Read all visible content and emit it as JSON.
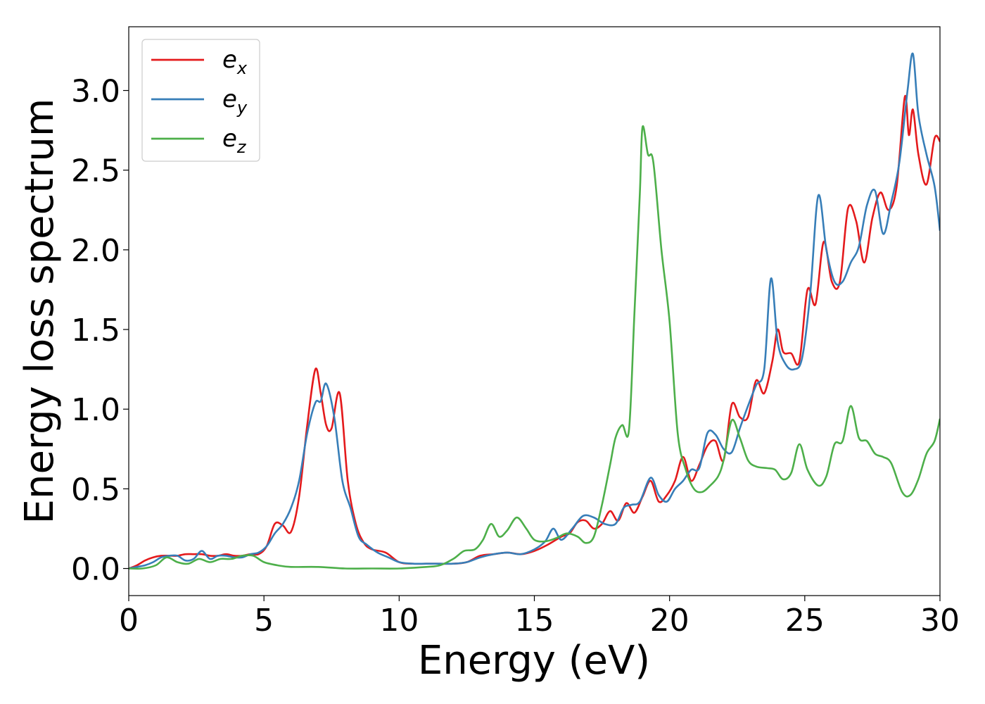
{
  "chart_data": {
    "type": "line",
    "xlabel": "Energy (eV)",
    "ylabel": "Energy loss spectrum",
    "xlim": [
      0,
      30
    ],
    "ylim": [
      -0.17,
      3.4
    ],
    "xticks": [
      0,
      5,
      10,
      15,
      20,
      25,
      30
    ],
    "xtick_labels": [
      "0",
      "5",
      "10",
      "15",
      "20",
      "25",
      "30"
    ],
    "yticks": [
      0.0,
      0.5,
      1.0,
      1.5,
      2.0,
      2.5,
      3.0
    ],
    "ytick_labels": [
      "0.0",
      "0.5",
      "1.0",
      "1.5",
      "2.0",
      "2.5",
      "3.0"
    ],
    "grid": false,
    "legend_position": "top-left",
    "series": [
      {
        "name": "e",
        "subscript": "x",
        "color": "#e41a1c",
        "x": [
          0,
          0.3,
          0.6,
          0.9,
          1.2,
          1.5,
          1.8,
          2.1,
          2.4,
          2.7,
          3.0,
          3.3,
          3.6,
          3.9,
          4.2,
          4.5,
          4.8,
          5.1,
          5.4,
          5.7,
          6.0,
          6.3,
          6.6,
          6.9,
          7.1,
          7.3,
          7.5,
          7.8,
          8.1,
          8.4,
          8.7,
          9.0,
          9.5,
          10.0,
          10.5,
          11.0,
          11.5,
          12.0,
          12.5,
          13.0,
          13.5,
          14.0,
          14.5,
          15.0,
          15.5,
          16.0,
          16.3,
          16.6,
          16.9,
          17.2,
          17.5,
          17.8,
          18.1,
          18.4,
          18.7,
          19.0,
          19.3,
          19.6,
          19.9,
          20.2,
          20.5,
          20.8,
          21.1,
          21.4,
          21.7,
          22.0,
          22.3,
          22.6,
          22.9,
          23.2,
          23.5,
          23.8,
          24.0,
          24.2,
          24.5,
          24.8,
          25.1,
          25.4,
          25.7,
          26.0,
          26.3,
          26.6,
          26.9,
          27.2,
          27.5,
          27.8,
          28.1,
          28.4,
          28.7,
          28.85,
          29.0,
          29.2,
          29.5,
          29.8,
          30.0
        ],
        "y": [
          0.0,
          0.02,
          0.05,
          0.07,
          0.08,
          0.08,
          0.08,
          0.09,
          0.09,
          0.09,
          0.08,
          0.08,
          0.09,
          0.08,
          0.08,
          0.09,
          0.09,
          0.14,
          0.28,
          0.27,
          0.23,
          0.45,
          0.9,
          1.25,
          1.1,
          0.9,
          0.88,
          1.1,
          0.55,
          0.28,
          0.16,
          0.12,
          0.1,
          0.04,
          0.03,
          0.03,
          0.03,
          0.03,
          0.04,
          0.08,
          0.09,
          0.1,
          0.09,
          0.11,
          0.15,
          0.2,
          0.22,
          0.29,
          0.3,
          0.25,
          0.28,
          0.36,
          0.3,
          0.41,
          0.35,
          0.45,
          0.55,
          0.42,
          0.46,
          0.55,
          0.7,
          0.55,
          0.65,
          0.77,
          0.8,
          0.68,
          1.03,
          0.95,
          0.95,
          1.18,
          1.1,
          1.3,
          1.5,
          1.36,
          1.35,
          1.3,
          1.75,
          1.66,
          2.05,
          1.8,
          1.8,
          2.26,
          2.18,
          1.92,
          2.2,
          2.36,
          2.25,
          2.4,
          2.96,
          2.72,
          2.88,
          2.6,
          2.41,
          2.7,
          2.68
        ]
      },
      {
        "name": "e",
        "subscript": "y",
        "color": "#377eb8",
        "x": [
          0,
          0.3,
          0.6,
          0.9,
          1.2,
          1.5,
          1.8,
          2.1,
          2.4,
          2.7,
          3.0,
          3.3,
          3.6,
          3.9,
          4.2,
          4.5,
          4.8,
          5.1,
          5.4,
          5.7,
          6.0,
          6.3,
          6.6,
          6.9,
          7.1,
          7.3,
          7.6,
          7.9,
          8.2,
          8.5,
          8.8,
          9.2,
          9.6,
          10.0,
          10.5,
          11.0,
          11.5,
          12.0,
          12.5,
          13.0,
          13.5,
          14.0,
          14.5,
          15.0,
          15.4,
          15.7,
          16.0,
          16.4,
          16.8,
          17.2,
          17.6,
          18.0,
          18.3,
          18.6,
          18.9,
          19.3,
          19.6,
          19.9,
          20.2,
          20.5,
          20.8,
          21.1,
          21.4,
          21.7,
          22.0,
          22.3,
          22.6,
          22.9,
          23.2,
          23.5,
          23.75,
          24.0,
          24.3,
          24.6,
          24.9,
          25.2,
          25.5,
          25.8,
          26.1,
          26.4,
          26.7,
          27.0,
          27.3,
          27.6,
          27.9,
          28.2,
          28.5,
          28.8,
          29.0,
          29.2,
          29.5,
          29.8,
          30.0
        ],
        "y": [
          0.0,
          0.01,
          0.02,
          0.04,
          0.07,
          0.08,
          0.08,
          0.05,
          0.06,
          0.11,
          0.06,
          0.08,
          0.08,
          0.07,
          0.07,
          0.09,
          0.1,
          0.14,
          0.22,
          0.28,
          0.38,
          0.55,
          0.85,
          1.04,
          1.05,
          1.16,
          0.95,
          0.55,
          0.38,
          0.2,
          0.15,
          0.1,
          0.07,
          0.04,
          0.03,
          0.03,
          0.03,
          0.03,
          0.04,
          0.07,
          0.09,
          0.1,
          0.09,
          0.12,
          0.17,
          0.25,
          0.18,
          0.25,
          0.33,
          0.32,
          0.28,
          0.28,
          0.38,
          0.4,
          0.42,
          0.57,
          0.46,
          0.42,
          0.5,
          0.55,
          0.62,
          0.63,
          0.85,
          0.84,
          0.75,
          0.73,
          0.88,
          1.02,
          1.15,
          1.25,
          1.82,
          1.42,
          1.28,
          1.25,
          1.32,
          1.72,
          2.34,
          2.0,
          1.8,
          1.8,
          1.92,
          2.02,
          2.28,
          2.37,
          2.1,
          2.3,
          2.55,
          3.0,
          3.23,
          2.85,
          2.6,
          2.4,
          2.12
        ]
      },
      {
        "name": "e",
        "subscript": "z",
        "color": "#4daf4a",
        "x": [
          0,
          0.5,
          1.0,
          1.4,
          1.8,
          2.2,
          2.6,
          3.0,
          3.4,
          3.8,
          4.2,
          4.6,
          5.0,
          5.5,
          6.0,
          7.0,
          8.0,
          9.0,
          10.0,
          11.0,
          11.5,
          12.0,
          12.4,
          12.8,
          13.1,
          13.4,
          13.7,
          14.0,
          14.35,
          14.7,
          15.0,
          15.4,
          15.8,
          16.2,
          16.6,
          16.9,
          17.2,
          17.5,
          17.8,
          18.0,
          18.25,
          18.5,
          18.7,
          18.9,
          19.0,
          19.2,
          19.4,
          19.7,
          20.0,
          20.3,
          20.6,
          20.9,
          21.2,
          21.5,
          21.8,
          22.0,
          22.3,
          22.6,
          22.9,
          23.2,
          23.6,
          23.9,
          24.2,
          24.5,
          24.8,
          25.1,
          25.5,
          25.8,
          26.1,
          26.4,
          26.7,
          27.0,
          27.3,
          27.6,
          27.9,
          28.2,
          28.6,
          28.9,
          29.2,
          29.5,
          29.8,
          30.0
        ],
        "y": [
          0.0,
          0.0,
          0.02,
          0.07,
          0.04,
          0.03,
          0.06,
          0.04,
          0.06,
          0.06,
          0.08,
          0.08,
          0.04,
          0.02,
          0.01,
          0.01,
          0.0,
          0.0,
          0.0,
          0.01,
          0.02,
          0.06,
          0.11,
          0.12,
          0.18,
          0.28,
          0.2,
          0.24,
          0.32,
          0.25,
          0.18,
          0.17,
          0.19,
          0.22,
          0.2,
          0.16,
          0.2,
          0.4,
          0.65,
          0.82,
          0.9,
          0.87,
          1.6,
          2.35,
          2.77,
          2.6,
          2.55,
          2.0,
          1.55,
          0.85,
          0.62,
          0.5,
          0.48,
          0.52,
          0.58,
          0.68,
          0.93,
          0.82,
          0.68,
          0.64,
          0.63,
          0.62,
          0.56,
          0.6,
          0.78,
          0.62,
          0.52,
          0.58,
          0.78,
          0.8,
          1.02,
          0.82,
          0.8,
          0.72,
          0.7,
          0.66,
          0.48,
          0.46,
          0.56,
          0.72,
          0.8,
          0.94
        ]
      }
    ]
  }
}
